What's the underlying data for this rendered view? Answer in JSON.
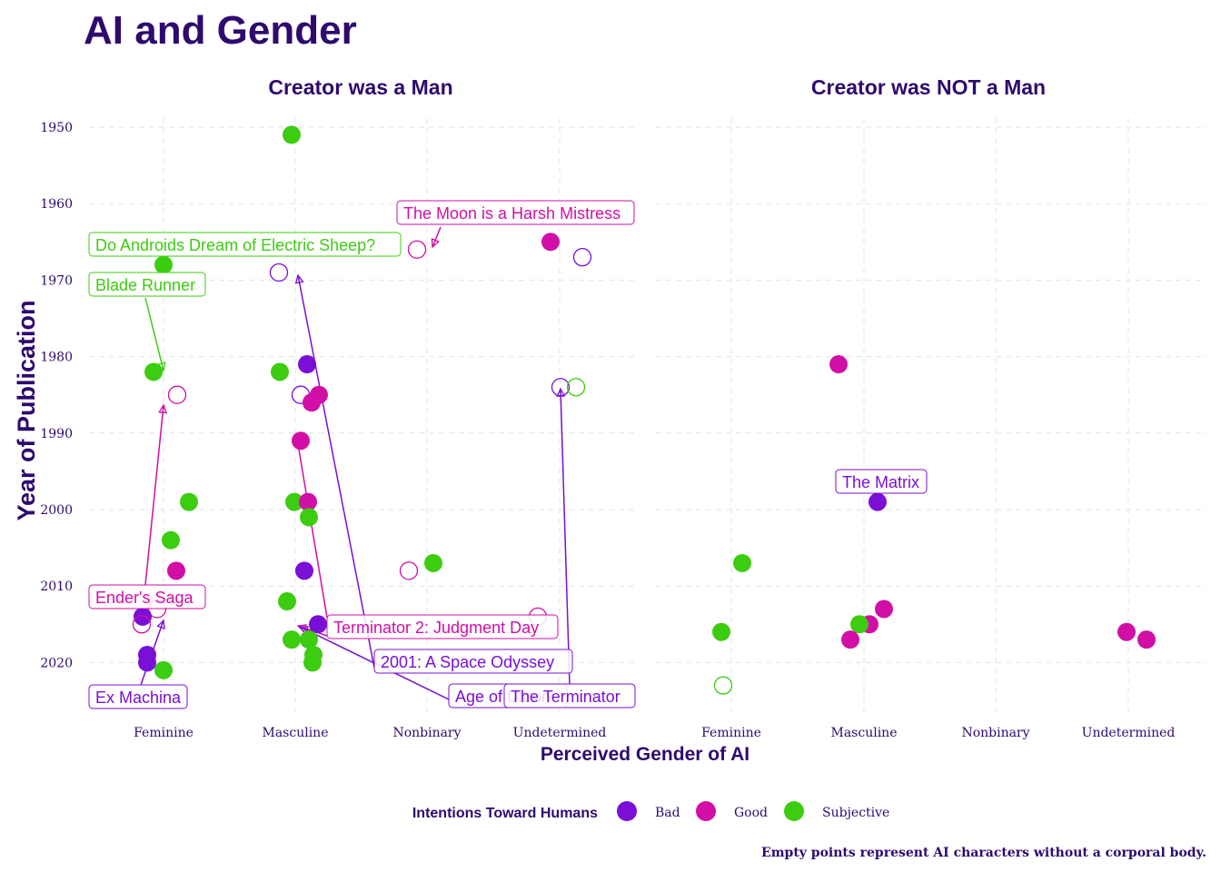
{
  "chart_data": {
    "type": "scatter",
    "title": "AI and Gender",
    "xlabel": "Perceived Gender of AI",
    "ylabel": "Year of Publication",
    "categories": [
      "Feminine",
      "Masculine",
      "Nonbinary",
      "Undetermined"
    ],
    "y_ticks": [
      1950,
      1960,
      1970,
      1980,
      1990,
      2000,
      2010,
      2020
    ],
    "ylim": [
      1949.5,
      2022.5
    ],
    "y_reversed": true,
    "grid": true,
    "caption": "Empty points represent AI characters without a corporal body.",
    "legend": {
      "title": "Intentions Toward Humans",
      "position": "bottom",
      "entries": [
        {
          "name": "Bad",
          "color": "#7a0fd6"
        },
        {
          "name": "Good",
          "color": "#d10fa6"
        },
        {
          "name": "Subjective",
          "color": "#3ccc10"
        }
      ]
    },
    "panels": [
      {
        "title": "Creator was a Man",
        "points": [
          {
            "x": "Feminine",
            "y": 1968,
            "intent": "Subjective",
            "body": true
          },
          {
            "x": "Feminine",
            "y": 1982,
            "intent": "Subjective",
            "body": true
          },
          {
            "x": "Feminine",
            "y": 1985,
            "intent": "Good",
            "body": false
          },
          {
            "x": "Feminine",
            "y": 1999,
            "intent": "Subjective",
            "body": true
          },
          {
            "x": "Feminine",
            "y": 2004,
            "intent": "Subjective",
            "body": true
          },
          {
            "x": "Feminine",
            "y": 2008,
            "intent": "Good",
            "body": true
          },
          {
            "x": "Feminine",
            "y": 2013,
            "intent": "Good",
            "body": false
          },
          {
            "x": "Feminine",
            "y": 2014,
            "intent": "Bad",
            "body": true
          },
          {
            "x": "Feminine",
            "y": 2015,
            "intent": "Good",
            "body": false
          },
          {
            "x": "Feminine",
            "y": 2019,
            "intent": "Bad",
            "body": true
          },
          {
            "x": "Feminine",
            "y": 2020,
            "intent": "Bad",
            "body": true
          },
          {
            "x": "Feminine",
            "y": 2021,
            "intent": "Subjective",
            "body": true
          },
          {
            "x": "Masculine",
            "y": 1951,
            "intent": "Subjective",
            "body": true
          },
          {
            "x": "Masculine",
            "y": 1969,
            "intent": "Bad",
            "body": false
          },
          {
            "x": "Masculine",
            "y": 1981,
            "intent": "Bad",
            "body": true
          },
          {
            "x": "Masculine",
            "y": 1982,
            "intent": "Subjective",
            "body": true
          },
          {
            "x": "Masculine",
            "y": 1985,
            "intent": "Bad",
            "body": false
          },
          {
            "x": "Masculine",
            "y": 1985,
            "intent": "Good",
            "body": true
          },
          {
            "x": "Masculine",
            "y": 1986,
            "intent": "Good",
            "body": true
          },
          {
            "x": "Masculine",
            "y": 1991,
            "intent": "Good",
            "body": true
          },
          {
            "x": "Masculine",
            "y": 1999,
            "intent": "Subjective",
            "body": true
          },
          {
            "x": "Masculine",
            "y": 1999,
            "intent": "Good",
            "body": true
          },
          {
            "x": "Masculine",
            "y": 2001,
            "intent": "Subjective",
            "body": true
          },
          {
            "x": "Masculine",
            "y": 2008,
            "intent": "Bad",
            "body": true
          },
          {
            "x": "Masculine",
            "y": 2012,
            "intent": "Subjective",
            "body": true
          },
          {
            "x": "Masculine",
            "y": 2015,
            "intent": "Bad",
            "body": true
          },
          {
            "x": "Masculine",
            "y": 2017,
            "intent": "Subjective",
            "body": true
          },
          {
            "x": "Masculine",
            "y": 2017,
            "intent": "Subjective",
            "body": true
          },
          {
            "x": "Masculine",
            "y": 2019,
            "intent": "Subjective",
            "body": true
          },
          {
            "x": "Masculine",
            "y": 2020,
            "intent": "Subjective",
            "body": true
          },
          {
            "x": "Nonbinary",
            "y": 1966,
            "intent": "Good",
            "body": false
          },
          {
            "x": "Nonbinary",
            "y": 2008,
            "intent": "Good",
            "body": false
          },
          {
            "x": "Nonbinary",
            "y": 2007,
            "intent": "Subjective",
            "body": true
          },
          {
            "x": "Undetermined",
            "y": 1965,
            "intent": "Good",
            "body": true
          },
          {
            "x": "Undetermined",
            "y": 1967,
            "intent": "Bad",
            "body": false
          },
          {
            "x": "Undetermined",
            "y": 1984,
            "intent": "Bad",
            "body": false
          },
          {
            "x": "Undetermined",
            "y": 1984,
            "intent": "Subjective",
            "body": false
          },
          {
            "x": "Undetermined",
            "y": 2014,
            "intent": "Good",
            "body": false
          }
        ],
        "labels": [
          {
            "text": "The Moon is a Harsh Mistress",
            "intent": "Good"
          },
          {
            "text": "Do Androids Dream of Electric Sheep?",
            "intent": "Subjective"
          },
          {
            "text": "Blade Runner",
            "intent": "Subjective"
          },
          {
            "text": "Ender's Saga",
            "intent": "Good"
          },
          {
            "text": "Ex Machina",
            "intent": "Bad"
          },
          {
            "text": "Terminator 2: Judgment Day",
            "intent": "Good"
          },
          {
            "text": "2001: A Space Odyssey",
            "intent": "Bad"
          },
          {
            "text": "Age of Ultron",
            "intent": "Bad"
          },
          {
            "text": "The Terminator",
            "intent": "Bad"
          }
        ]
      },
      {
        "title": "Creator was NOT a Man",
        "points": [
          {
            "x": "Feminine",
            "y": 2007,
            "intent": "Subjective",
            "body": true
          },
          {
            "x": "Feminine",
            "y": 2016,
            "intent": "Subjective",
            "body": true
          },
          {
            "x": "Feminine",
            "y": 2023,
            "intent": "Subjective",
            "body": false
          },
          {
            "x": "Masculine",
            "y": 1981,
            "intent": "Good",
            "body": true
          },
          {
            "x": "Masculine",
            "y": 1999,
            "intent": "Bad",
            "body": true
          },
          {
            "x": "Masculine",
            "y": 2013,
            "intent": "Good",
            "body": true
          },
          {
            "x": "Masculine",
            "y": 2015,
            "intent": "Good",
            "body": true
          },
          {
            "x": "Masculine",
            "y": 2015,
            "intent": "Subjective",
            "body": true
          },
          {
            "x": "Masculine",
            "y": 2017,
            "intent": "Good",
            "body": true
          },
          {
            "x": "Undetermined",
            "y": 2016,
            "intent": "Good",
            "body": true
          },
          {
            "x": "Undetermined",
            "y": 2017,
            "intent": "Good",
            "body": true
          }
        ],
        "labels": [
          {
            "text": "The Matrix",
            "intent": "Bad"
          }
        ]
      }
    ]
  }
}
